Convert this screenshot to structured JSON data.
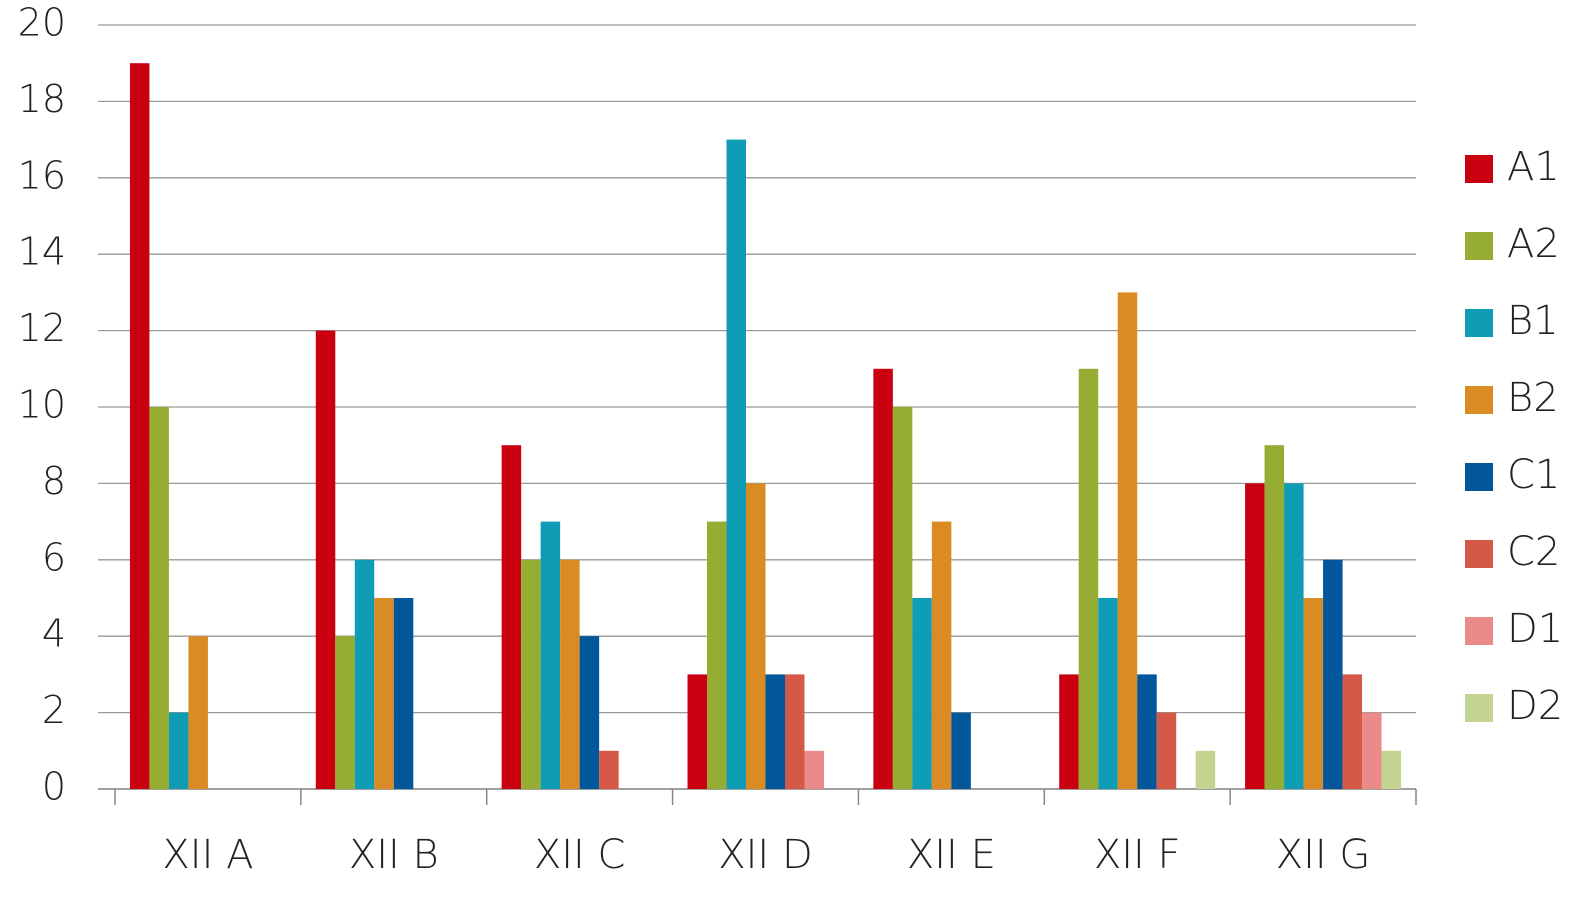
{
  "chart_data": {
    "type": "bar",
    "categories": [
      "XII A",
      "XII B",
      "XII C",
      "XII D",
      "XII E",
      "XII F",
      "XII G"
    ],
    "series": [
      {
        "name": "A1",
        "color": "#c8000f",
        "values": [
          19,
          12,
          9,
          3,
          11,
          3,
          8
        ]
      },
      {
        "name": "A2",
        "color": "#95ad33",
        "values": [
          10,
          4,
          6,
          7,
          10,
          11,
          9
        ]
      },
      {
        "name": "B1",
        "color": "#0e9db4",
        "values": [
          2,
          6,
          7,
          17,
          5,
          5,
          8
        ]
      },
      {
        "name": "B2",
        "color": "#db8b24",
        "values": [
          4,
          5,
          6,
          8,
          7,
          13,
          5
        ]
      },
      {
        "name": "C1",
        "color": "#02569a",
        "values": [
          0,
          5,
          4,
          3,
          2,
          3,
          6
        ]
      },
      {
        "name": "C2",
        "color": "#d45a47",
        "values": [
          0,
          0,
          1,
          3,
          0,
          2,
          3
        ]
      },
      {
        "name": "D1",
        "color": "#ea8b89",
        "values": [
          0,
          0,
          0,
          1,
          0,
          0,
          2
        ]
      },
      {
        "name": "D2",
        "color": "#c2d490",
        "values": [
          0,
          0,
          0,
          0,
          0,
          1,
          1
        ]
      }
    ],
    "ylim": [
      0,
      20
    ],
    "yticks": [
      0,
      2,
      4,
      6,
      8,
      10,
      12,
      14,
      16,
      18,
      20
    ],
    "grid": true,
    "legend": "right"
  }
}
